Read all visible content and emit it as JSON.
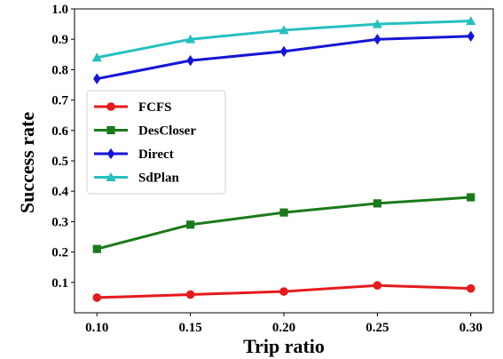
{
  "chart_data": {
    "type": "line",
    "title": "",
    "xlabel": "Trip ratio",
    "ylabel": "Success rate",
    "x": [
      0.1,
      0.15,
      0.2,
      0.25,
      0.3
    ],
    "x_tick_labels": [
      "0.10",
      "0.15",
      "0.20",
      "0.25",
      "0.30"
    ],
    "xlim": [
      0.088,
      0.312
    ],
    "ylim": [
      0.0,
      1.0
    ],
    "y_ticks": [
      0.1,
      0.2,
      0.3,
      0.4,
      0.5,
      0.6,
      0.7,
      0.8,
      0.9,
      1.0
    ],
    "y_tick_labels": [
      "0.1",
      "0.2",
      "0.3",
      "0.4",
      "0.5",
      "0.6",
      "0.7",
      "0.8",
      "0.9",
      "1.0"
    ],
    "grid": false,
    "legend_position": "center-left",
    "series": [
      {
        "name": "FCFS",
        "color": "#e41a1c",
        "marker": "circle",
        "values": [
          0.05,
          0.06,
          0.07,
          0.09,
          0.08
        ]
      },
      {
        "name": "DesCloser",
        "color": "#1a7a1a",
        "marker": "square",
        "values": [
          0.21,
          0.29,
          0.33,
          0.36,
          0.38
        ]
      },
      {
        "name": "Direct",
        "color": "#1515d6",
        "marker": "diamond",
        "values": [
          0.77,
          0.83,
          0.86,
          0.9,
          0.91
        ]
      },
      {
        "name": "SdPlan",
        "color": "#26bfbf",
        "marker": "triangle",
        "values": [
          0.84,
          0.9,
          0.93,
          0.95,
          0.96
        ]
      }
    ]
  }
}
